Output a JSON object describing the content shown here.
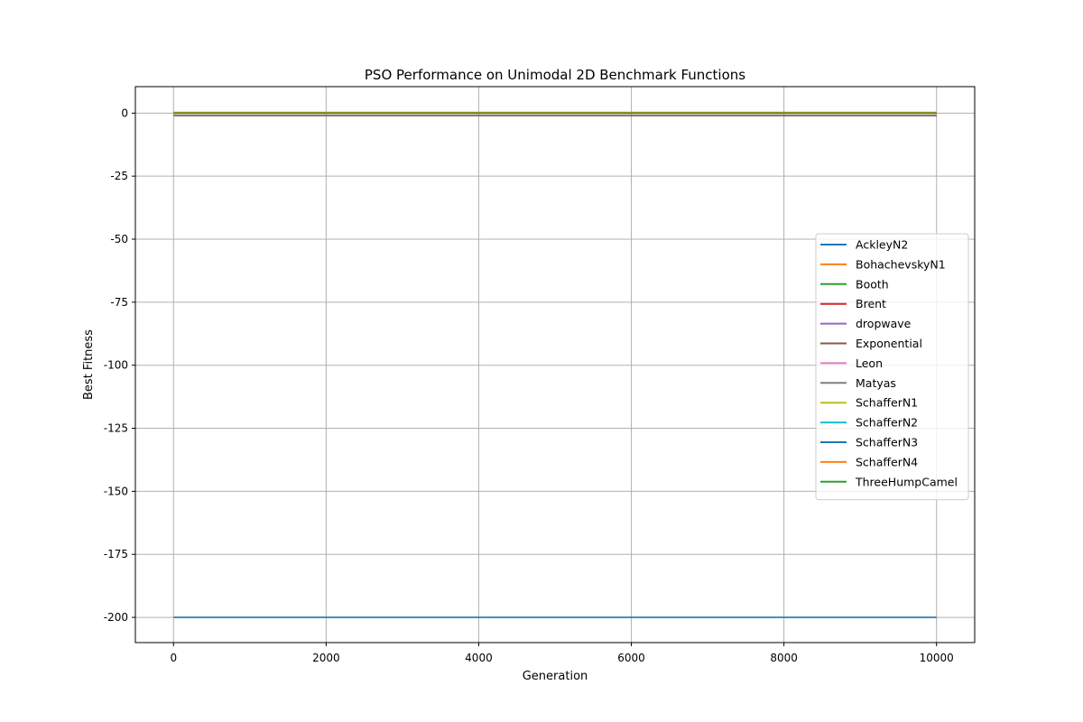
{
  "chart_data": {
    "type": "line",
    "title": "PSO Performance on Unimodal 2D Benchmark Functions",
    "xlabel": "Generation",
    "ylabel": "Best Fitness",
    "xlim": [
      -500,
      10500
    ],
    "ylim": [
      -210,
      10.5
    ],
    "xticks": [
      0,
      2000,
      4000,
      6000,
      8000,
      10000
    ],
    "xtick_labels": [
      "0",
      "2000",
      "4000",
      "6000",
      "8000",
      "10000"
    ],
    "yticks": [
      0,
      -25,
      -50,
      -75,
      -100,
      -125,
      -150,
      -175,
      -200
    ],
    "ytick_labels": [
      "0",
      "-25",
      "-50",
      "-75",
      "-100",
      "-125",
      "-150",
      "-175",
      "-200"
    ],
    "grid": true,
    "legend_position": "center-right",
    "series": [
      {
        "name": "AckleyN2",
        "color": "#1f77b4",
        "x": [
          0,
          10000
        ],
        "y": [
          -200,
          -200
        ]
      },
      {
        "name": "BohachevskyN1",
        "color": "#ff7f0e",
        "x": [
          0,
          10000
        ],
        "y": [
          0,
          0
        ]
      },
      {
        "name": "Booth",
        "color": "#2ca02c",
        "x": [
          0,
          10000
        ],
        "y": [
          0,
          0
        ]
      },
      {
        "name": "Brent",
        "color": "#d62728",
        "x": [
          0,
          10000
        ],
        "y": [
          0,
          0
        ]
      },
      {
        "name": "dropwave",
        "color": "#9467bd",
        "x": [
          0,
          10000
        ],
        "y": [
          -1,
          -1
        ]
      },
      {
        "name": "Exponential",
        "color": "#8c564b",
        "x": [
          0,
          10000
        ],
        "y": [
          -1,
          -1
        ]
      },
      {
        "name": "Leon",
        "color": "#e377c2",
        "x": [
          0,
          10000
        ],
        "y": [
          0,
          0
        ]
      },
      {
        "name": "Matyas",
        "color": "#7f7f7f",
        "x": [
          0,
          10000
        ],
        "y": [
          0,
          0
        ]
      },
      {
        "name": "SchafferN1",
        "color": "#bcbd22",
        "x": [
          0,
          10000
        ],
        "y": [
          0,
          0
        ]
      },
      {
        "name": "SchafferN2",
        "color": "#17becf",
        "x": [
          0,
          10000
        ],
        "y": [
          0,
          0
        ]
      },
      {
        "name": "SchafferN3",
        "color": "#1f77b4",
        "x": [
          0,
          10000
        ],
        "y": [
          0.0016,
          0.0016
        ]
      },
      {
        "name": "SchafferN4",
        "color": "#ff7f0e",
        "x": [
          0,
          10000
        ],
        "y": [
          0.292,
          0.292
        ]
      },
      {
        "name": "ThreeHumpCamel",
        "color": "#2ca02c",
        "x": [
          0,
          10000
        ],
        "y": [
          0,
          0
        ]
      }
    ]
  }
}
